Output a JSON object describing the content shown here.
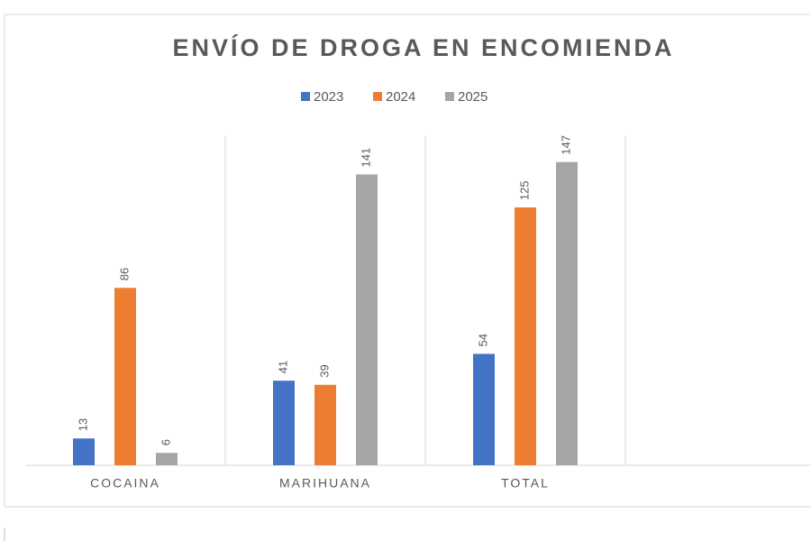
{
  "chart_data": {
    "type": "bar",
    "title": "ENVÍO DE DROGA EN ENCOMIENDA",
    "categories": [
      "COCAINA",
      "MARIHUANA",
      "TOTAL",
      null
    ],
    "series": [
      {
        "name": "2023",
        "color": "#4472c4",
        "values": [
          13,
          41,
          54,
          null
        ]
      },
      {
        "name": "2024",
        "color": "#ed7d31",
        "values": [
          86,
          39,
          125,
          null
        ]
      },
      {
        "name": "2025",
        "color": "#a5a5a5",
        "values": [
          6,
          141,
          147,
          null
        ]
      }
    ],
    "ylim": [
      0,
      160
    ],
    "legend": "top",
    "data_labels": true
  }
}
